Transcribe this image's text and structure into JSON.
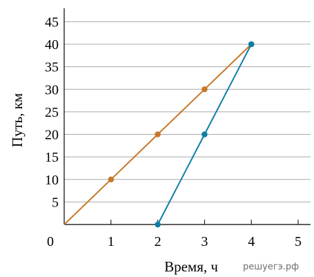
{
  "watermark": "решуегэ.рф",
  "chart_data": {
    "type": "line",
    "xlabel": "Время, ч",
    "ylabel": "Путь, км",
    "xlim": [
      0,
      5.5
    ],
    "ylim": [
      0,
      48
    ],
    "x_ticks": [
      1,
      2,
      3,
      4,
      5
    ],
    "y_ticks": [
      5,
      10,
      15,
      20,
      25,
      30,
      35,
      40,
      45
    ],
    "origin_label": "0",
    "grid": "horizontal",
    "legend": "none",
    "series": [
      {
        "color": "#c8782a",
        "x": [
          0,
          1,
          2,
          3,
          4
        ],
        "y": [
          0,
          10,
          20,
          30,
          40
        ],
        "markers": [
          1,
          2,
          3,
          4
        ]
      },
      {
        "color": "#0e7fa3",
        "x": [
          2,
          3,
          4
        ],
        "y": [
          0,
          20,
          40
        ],
        "markers": [
          0,
          1,
          2
        ]
      }
    ]
  }
}
